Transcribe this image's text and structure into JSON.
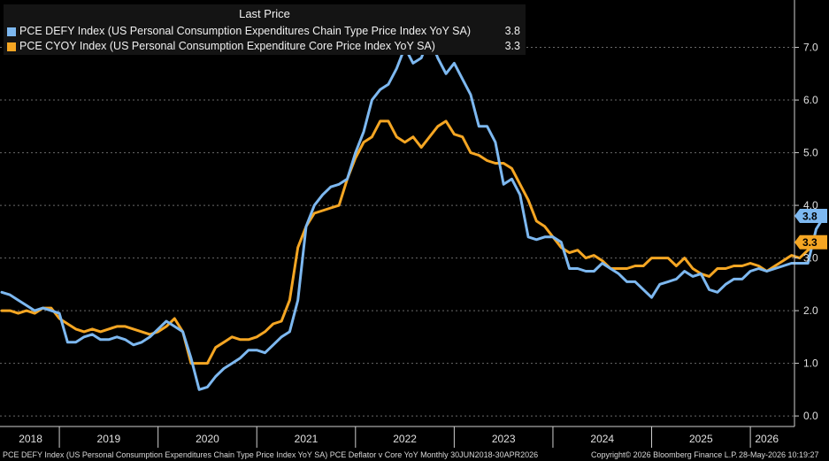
{
  "legend": {
    "title": "Last Price",
    "items": [
      {
        "name": "PCE DEFY Index (US Personal Consumption Expenditures Chain Type Price Index YoY SA)",
        "value": "3.8",
        "color": "#7db8f0"
      },
      {
        "name": "PCE CYOY Index (US Personal Consumption Expenditure Core Price Index YoY SA)",
        "value": "3.3",
        "color": "#f5a623"
      }
    ]
  },
  "footer": {
    "left": "PCE DEFY Index (US Personal Consumption Expenditures Chain Type Price Index YoY SA) PCE Deflator v Core YoY Monthly 30JUN2018-30APR2026",
    "copyright": "Copyright© 2026 Bloomberg Finance L.P.",
    "timestamp": "28-May-2026 10:19:27"
  },
  "chart_data": {
    "type": "line",
    "x_range": [
      "2018-06",
      "2026-04"
    ],
    "x_tick_labels": [
      "2018",
      "2019",
      "2020",
      "2021",
      "2022",
      "2023",
      "2024",
      "2025",
      "2026"
    ],
    "ylim": [
      -0.2,
      7.9
    ],
    "y_ticks": [
      "0.0",
      "1.0",
      "2.0",
      "3.0",
      "4.0",
      "5.0",
      "6.0",
      "7.0"
    ],
    "grid": "horizontal dashed",
    "legend_position": "top-left",
    "series": [
      {
        "name": "PCE DEFY Index (US Personal Consumption Expenditures Chain Type Price Index YoY SA)",
        "color": "#7db8f0",
        "last_value": "3.8",
        "values": [
          2.35,
          2.3,
          2.2,
          2.1,
          2.0,
          2.05,
          2.0,
          1.95,
          1.4,
          1.4,
          1.5,
          1.55,
          1.45,
          1.45,
          1.5,
          1.45,
          1.35,
          1.4,
          1.5,
          1.65,
          1.8,
          1.7,
          1.6,
          1.1,
          0.5,
          0.55,
          0.75,
          0.9,
          1.0,
          1.1,
          1.25,
          1.25,
          1.2,
          1.35,
          1.5,
          1.6,
          2.2,
          3.6,
          4.0,
          4.2,
          4.35,
          4.4,
          4.5,
          5.0,
          5.4,
          6.0,
          6.2,
          6.3,
          6.6,
          7.0,
          6.7,
          6.8,
          7.2,
          6.8,
          6.5,
          6.7,
          6.4,
          6.1,
          5.5,
          5.5,
          5.2,
          4.4,
          4.5,
          4.2,
          3.4,
          3.35,
          3.4,
          3.4,
          3.3,
          2.8,
          2.8,
          2.75,
          2.75,
          2.9,
          2.8,
          2.7,
          2.55,
          2.55,
          2.4,
          2.25,
          2.5,
          2.55,
          2.6,
          2.75,
          2.65,
          2.7,
          2.4,
          2.35,
          2.5,
          2.6,
          2.6,
          2.75,
          2.8,
          2.75,
          2.8,
          2.85,
          2.9,
          2.9,
          2.9,
          3.55,
          3.8
        ]
      },
      {
        "name": "PCE CYOY Index (US Personal Consumption Expenditure Core Price Index YoY SA)",
        "color": "#f5a623",
        "last_value": "3.3",
        "values": [
          2.0,
          2.0,
          1.95,
          2.0,
          1.95,
          2.05,
          2.05,
          1.85,
          1.75,
          1.65,
          1.6,
          1.65,
          1.6,
          1.65,
          1.7,
          1.7,
          1.65,
          1.6,
          1.55,
          1.6,
          1.7,
          1.85,
          1.6,
          1.0,
          1.0,
          1.0,
          1.3,
          1.4,
          1.5,
          1.45,
          1.45,
          1.5,
          1.6,
          1.75,
          1.8,
          2.2,
          3.2,
          3.6,
          3.85,
          3.9,
          3.95,
          4.0,
          4.5,
          4.9,
          5.2,
          5.3,
          5.6,
          5.6,
          5.3,
          5.2,
          5.3,
          5.1,
          5.3,
          5.5,
          5.6,
          5.35,
          5.3,
          5.0,
          4.95,
          4.85,
          4.8,
          4.8,
          4.7,
          4.4,
          4.1,
          3.7,
          3.6,
          3.4,
          3.2,
          3.1,
          3.15,
          3.0,
          3.05,
          2.95,
          2.8,
          2.8,
          2.8,
          2.85,
          2.85,
          3.0,
          3.0,
          3.0,
          2.85,
          3.0,
          2.8,
          2.7,
          2.65,
          2.8,
          2.8,
          2.85,
          2.85,
          2.9,
          2.85,
          2.75,
          2.85,
          2.95,
          3.05,
          3.0,
          3.15,
          3.25,
          3.3
        ]
      }
    ]
  }
}
